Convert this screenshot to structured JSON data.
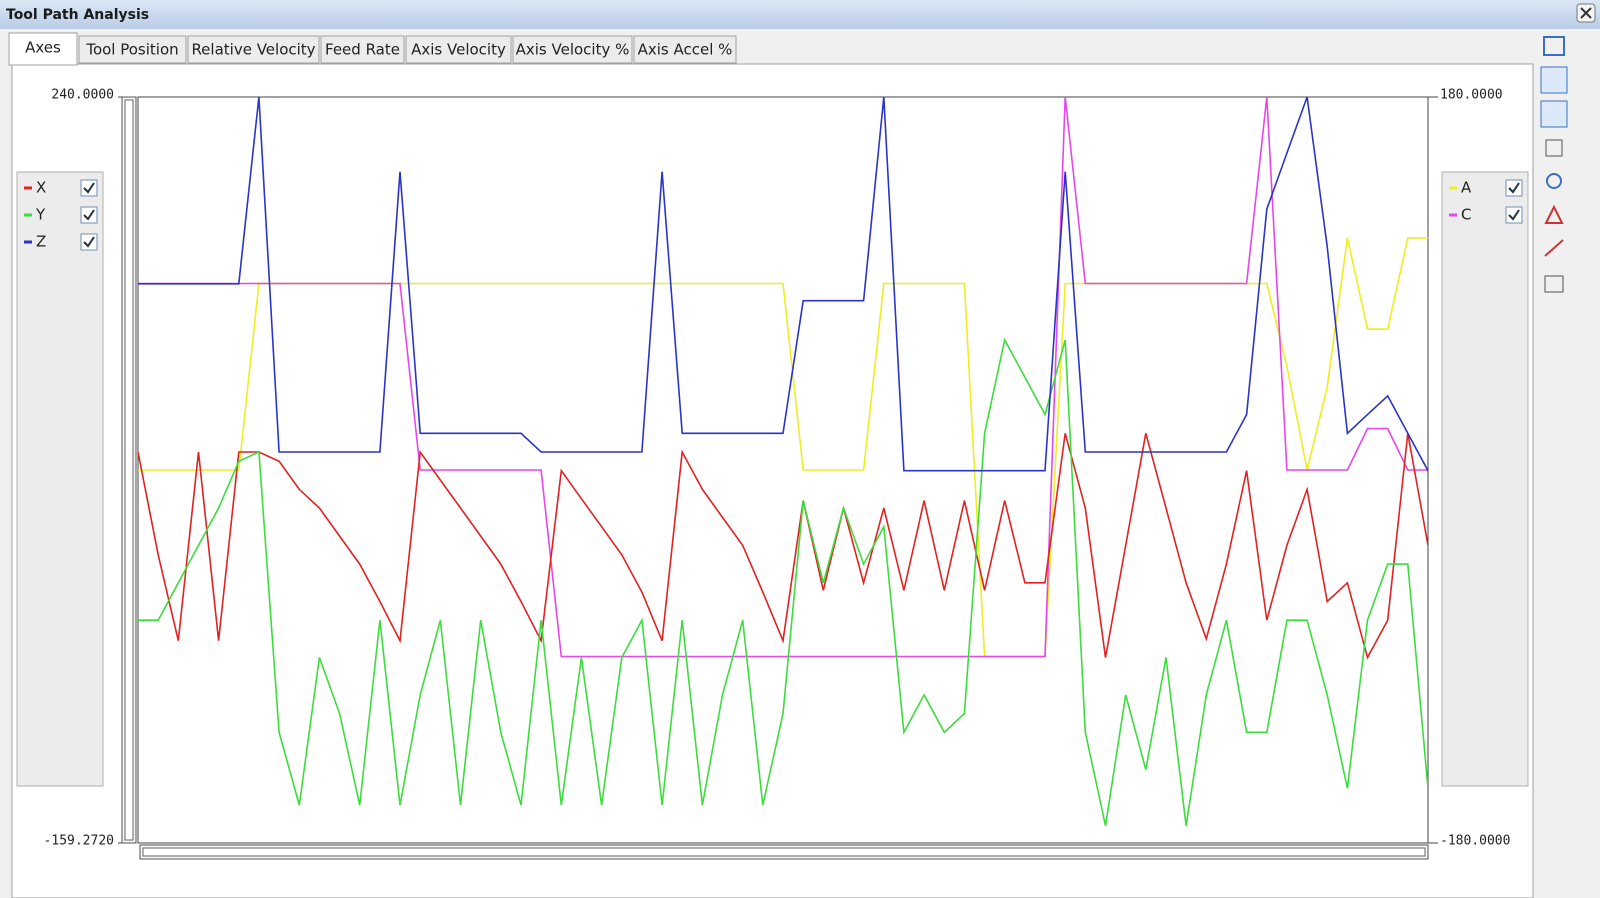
{
  "window": {
    "title": "Tool Path Analysis"
  },
  "tabs": [
    "Axes",
    "Tool Position",
    "Relative Velocity",
    "Feed Rate",
    "Axis Velocity",
    "Axis Velocity %",
    "Axis Accel %"
  ],
  "active_tab": 0,
  "chart_data": {
    "type": "line",
    "x": [
      0,
      1,
      2,
      3,
      4,
      5,
      6,
      7,
      8,
      9,
      10,
      11,
      12,
      13,
      14,
      15,
      16,
      17,
      18,
      19,
      20,
      21,
      22,
      23,
      24,
      25,
      26,
      27,
      28,
      29,
      30,
      31,
      32,
      33,
      34,
      35,
      36,
      37,
      38,
      39,
      40,
      41,
      42,
      43,
      44,
      45,
      46,
      47,
      48,
      49,
      50,
      51,
      52,
      53,
      54,
      55,
      56,
      57,
      58,
      59,
      60,
      61,
      62,
      63,
      64
    ],
    "xlim": [
      0,
      64
    ],
    "ylim": [
      -159.272,
      240
    ],
    "yticks": [
      {
        "value": 240,
        "label": "240.0000"
      },
      {
        "value": -159.272,
        "label": "-159.2720"
      }
    ],
    "y2lim": [
      -180,
      180
    ],
    "y2ticks": [
      {
        "value": 180,
        "label": "180.0000"
      },
      {
        "value": -180,
        "label": "-180.0000"
      }
    ],
    "series": [
      {
        "name": "X",
        "color": "#e02222",
        "checked": true,
        "values": [
          50,
          -5,
          -51,
          50,
          -51,
          50,
          50,
          45,
          30,
          20,
          5,
          -10,
          -30,
          -51,
          50,
          35,
          20,
          5,
          -10,
          -30,
          -51,
          40,
          25,
          10,
          -5,
          -25,
          -51,
          50,
          30,
          15,
          0,
          -25,
          -51,
          24,
          -24,
          20,
          -20,
          20,
          -24,
          24,
          -24,
          24,
          -24,
          24,
          -20,
          -20,
          60,
          20,
          -60,
          0,
          60,
          20,
          -20,
          -50,
          -10,
          40,
          -40,
          0,
          30,
          -30,
          -20,
          -60,
          -40,
          60,
          0
        ]
      },
      {
        "name": "Y",
        "color": "#3ddc3d",
        "checked": true,
        "values": [
          -40,
          -40,
          -20,
          0,
          20,
          45,
          50,
          -100,
          -139,
          -60,
          -90,
          -139,
          -40,
          -139,
          -80,
          -40,
          -139,
          -40,
          -100,
          -139,
          -40,
          -139,
          -60,
          -139,
          -60,
          -40,
          -139,
          -40,
          -139,
          -80,
          -40,
          -139,
          -90,
          24,
          -20,
          20,
          -10,
          10,
          -100,
          -80,
          -100,
          -90,
          60,
          110,
          90,
          70,
          110,
          -100,
          -150,
          -80,
          -120,
          -60,
          -150,
          -80,
          -40,
          -100,
          -100,
          -40,
          -40,
          -80,
          -130,
          -40,
          -10,
          -10,
          -130
        ]
      },
      {
        "name": "Z",
        "color": "#2b34c8",
        "checked": true,
        "values": [
          140,
          140,
          140,
          140,
          140,
          140,
          240,
          50,
          50,
          50,
          50,
          50,
          50,
          200,
          60,
          60,
          60,
          60,
          60,
          60,
          50,
          50,
          50,
          50,
          50,
          50,
          200,
          60,
          60,
          60,
          60,
          60,
          60,
          131,
          131,
          131,
          131,
          240,
          40,
          40,
          40,
          40,
          40,
          40,
          40,
          40,
          200,
          50,
          50,
          50,
          50,
          50,
          50,
          50,
          50,
          70,
          180,
          210,
          240,
          160,
          60,
          70,
          80,
          60,
          40
        ]
      },
      {
        "name": "A",
        "color": "#eeee22",
        "axis": "y2",
        "checked": true,
        "values": [
          0,
          0,
          0,
          0,
          0,
          0,
          90,
          90,
          90,
          90,
          90,
          90,
          90,
          90,
          90,
          90,
          90,
          90,
          90,
          90,
          90,
          90,
          90,
          90,
          90,
          90,
          90,
          90,
          90,
          90,
          90,
          90,
          90,
          0,
          0,
          0,
          0,
          90,
          90,
          90,
          90,
          90,
          -90,
          -90,
          -90,
          -90,
          90,
          90,
          90,
          90,
          90,
          90,
          90,
          90,
          90,
          90,
          90,
          50,
          0,
          40,
          112,
          68,
          68,
          112,
          112
        ]
      },
      {
        "name": "C",
        "color": "#e847e8",
        "axis": "y2",
        "checked": true,
        "values": [
          90,
          90,
          90,
          90,
          90,
          90,
          90,
          90,
          90,
          90,
          90,
          90,
          90,
          90,
          0,
          0,
          0,
          0,
          0,
          0,
          0,
          -90,
          -90,
          -90,
          -90,
          -90,
          -90,
          -90,
          -90,
          -90,
          -90,
          -90,
          -90,
          -90,
          -90,
          -90,
          -90,
          -90,
          -90,
          -90,
          -90,
          -90,
          -90,
          -90,
          -90,
          -90,
          180,
          90,
          90,
          90,
          90,
          90,
          90,
          90,
          90,
          90,
          180,
          0,
          0,
          0,
          0,
          20,
          20,
          0,
          0
        ]
      }
    ]
  }
}
